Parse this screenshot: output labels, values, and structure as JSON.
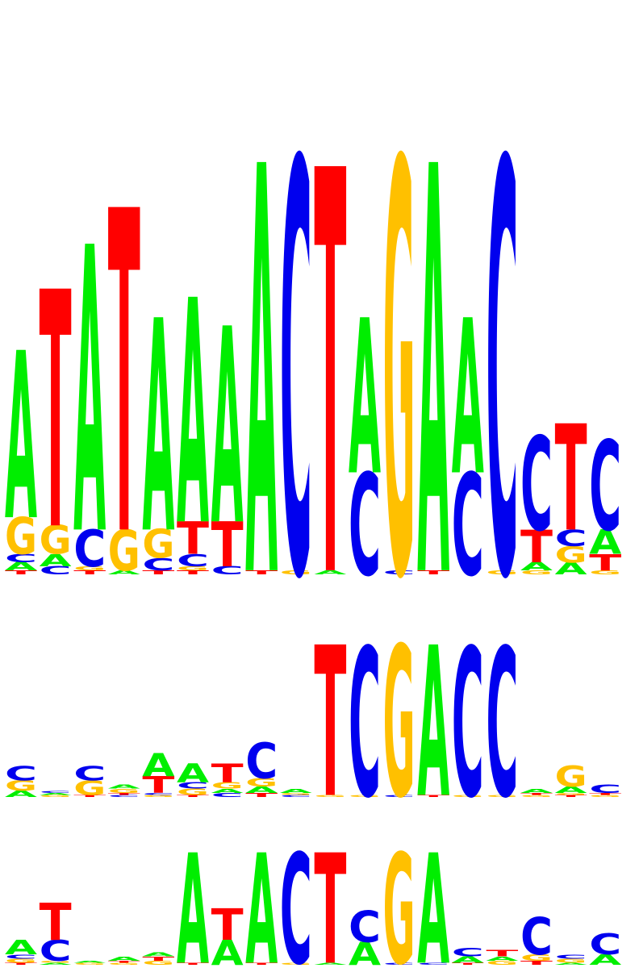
{
  "colors": {
    "A": "#00ee00",
    "C": "#0000ee",
    "G": "#ffc000",
    "T": "#ff0000"
  },
  "logos": [
    {
      "name": "logo-1",
      "columns": [
        [
          [
            "T",
            0.01
          ],
          [
            "A",
            0.02
          ],
          [
            "C",
            0.02
          ],
          [
            "G",
            0.09
          ],
          [
            "A",
            0.41
          ]
        ],
        [
          [
            "C",
            0.02
          ],
          [
            "A",
            0.03
          ],
          [
            "G",
            0.07
          ],
          [
            "T",
            0.58
          ]
        ],
        [
          [
            "T",
            0.01
          ],
          [
            "G",
            0.01
          ],
          [
            "C",
            0.09
          ],
          [
            "A",
            0.7
          ]
        ],
        [
          [
            "A",
            0.01
          ],
          [
            "G",
            0.1
          ],
          [
            "T",
            0.79
          ]
        ],
        [
          [
            "T",
            0.01
          ],
          [
            "C",
            0.03
          ],
          [
            "G",
            0.07
          ],
          [
            "A",
            0.52
          ]
        ],
        [
          [
            "T",
            0.01
          ],
          [
            "G",
            0.01
          ],
          [
            "C",
            0.03
          ],
          [
            "T",
            0.08
          ],
          [
            "A",
            0.55
          ]
        ],
        [
          [
            "C",
            0.02
          ],
          [
            "T",
            0.11
          ],
          [
            "A",
            0.48
          ]
        ],
        [
          [
            "T",
            0.01
          ],
          [
            "A",
            1.0
          ]
        ],
        [
          [
            "G",
            0.01
          ],
          [
            "C",
            1.01
          ]
        ],
        [
          [
            "A",
            0.01
          ],
          [
            "T",
            0.99
          ]
        ],
        [
          [
            "C",
            0.25
          ],
          [
            "A",
            0.38
          ]
        ],
        [
          [
            "C",
            0.01
          ],
          [
            "G",
            1.01
          ]
        ],
        [
          [
            "T",
            0.01
          ],
          [
            "A",
            1.0
          ]
        ],
        [
          [
            "C",
            0.25
          ],
          [
            "A",
            0.38
          ]
        ],
        [
          [
            "G",
            0.01
          ],
          [
            "C",
            1.01
          ]
        ],
        [
          [
            "G",
            0.01
          ],
          [
            "A",
            0.02
          ],
          [
            "T",
            0.08
          ],
          [
            "C",
            0.23
          ]
        ],
        [
          [
            "A",
            0.03
          ],
          [
            "G",
            0.04
          ],
          [
            "C",
            0.04
          ],
          [
            "T",
            0.26
          ]
        ],
        [
          [
            "G",
            0.01
          ],
          [
            "T",
            0.04
          ],
          [
            "A",
            0.06
          ],
          [
            "C",
            0.22
          ]
        ]
      ]
    },
    {
      "name": "logo-2",
      "columns": [
        [
          [
            "A",
            0.03
          ],
          [
            "G",
            0.05
          ],
          [
            "C",
            0.07
          ]
        ],
        [
          [
            "G",
            0.01
          ],
          [
            "A",
            0.01
          ],
          [
            "C",
            0.01
          ]
        ],
        [
          [
            "T",
            0.01
          ],
          [
            "G",
            0.07
          ],
          [
            "C",
            0.07
          ]
        ],
        [
          [
            "C",
            0.01
          ],
          [
            "T",
            0.01
          ],
          [
            "G",
            0.02
          ],
          [
            "A",
            0.02
          ]
        ],
        [
          [
            "G",
            0.01
          ],
          [
            "C",
            0.01
          ],
          [
            "T",
            0.08
          ],
          [
            "A",
            0.11
          ]
        ],
        [
          [
            "T",
            0.01
          ],
          [
            "G",
            0.03
          ],
          [
            "C",
            0.03
          ],
          [
            "A",
            0.09
          ]
        ],
        [
          [
            "C",
            0.02
          ],
          [
            "A",
            0.02
          ],
          [
            "G",
            0.03
          ],
          [
            "T",
            0.09
          ]
        ],
        [
          [
            "T",
            0.02
          ],
          [
            "A",
            0.03
          ],
          [
            "G",
            0.04
          ],
          [
            "C",
            0.17
          ]
        ],
        [
          [
            "C",
            0.01
          ],
          [
            "G",
            0.01
          ],
          [
            "A",
            0.02
          ]
        ],
        [
          [
            "G",
            0.01
          ],
          [
            "T",
            0.72
          ]
        ],
        [
          [
            "G",
            0.01
          ],
          [
            "C",
            0.71
          ]
        ],
        [
          [
            "C",
            0.01
          ],
          [
            "G",
            0.72
          ]
        ],
        [
          [
            "T",
            0.01
          ],
          [
            "A",
            0.72
          ]
        ],
        [
          [
            "G",
            0.01
          ],
          [
            "C",
            0.71
          ]
        ],
        [
          [
            "G",
            0.01
          ],
          [
            "C",
            0.71
          ]
        ],
        [
          [
            "G",
            0.01
          ],
          [
            "T",
            0.01
          ],
          [
            "A",
            0.02
          ]
        ],
        [
          [
            "T",
            0.01
          ],
          [
            "G",
            0.01
          ],
          [
            "A",
            0.03
          ],
          [
            "G",
            0.1
          ]
        ],
        [
          [
            "G",
            0.01
          ],
          [
            "T",
            0.01
          ],
          [
            "C",
            0.04
          ]
        ]
      ]
    },
    {
      "name": "logo-3",
      "columns": [
        [
          [
            "T",
            0.01
          ],
          [
            "G",
            0.02
          ],
          [
            "C",
            0.02
          ],
          [
            "A",
            0.07
          ]
        ],
        [
          [
            "A",
            0.01
          ],
          [
            "G",
            0.01
          ],
          [
            "C",
            0.1
          ],
          [
            "T",
            0.18
          ]
        ],
        [
          [
            "G",
            0.01
          ],
          [
            "A",
            0.01
          ]
        ],
        [
          [
            "G",
            0.01
          ],
          [
            "T",
            0.01
          ],
          [
            "A",
            0.02
          ]
        ],
        [
          [
            "G",
            0.02
          ],
          [
            "T",
            0.02
          ],
          [
            "A",
            0.02
          ]
        ],
        [
          [
            "T",
            0.01
          ],
          [
            "A",
            0.53
          ]
        ],
        [
          [
            "A",
            0.12
          ],
          [
            "T",
            0.15
          ]
        ],
        [
          [
            "T",
            0.01
          ],
          [
            "A",
            0.53
          ]
        ],
        [
          [
            "G",
            0.01
          ],
          [
            "C",
            0.53
          ]
        ],
        [
          [
            "A",
            0.01
          ],
          [
            "T",
            0.53
          ]
        ],
        [
          [
            "A",
            0.11
          ],
          [
            "C",
            0.15
          ]
        ],
        [
          [
            "C",
            0.01
          ],
          [
            "G",
            0.53
          ]
        ],
        [
          [
            "C",
            0.01
          ],
          [
            "A",
            0.53
          ]
        ],
        [
          [
            "T",
            0.01
          ],
          [
            "A",
            0.03
          ],
          [
            "C",
            0.04
          ]
        ],
        [
          [
            "G",
            0.02
          ],
          [
            "A",
            0.02
          ],
          [
            "T",
            0.03
          ]
        ],
        [
          [
            "T",
            0.02
          ],
          [
            "G",
            0.03
          ],
          [
            "C",
            0.18
          ]
        ],
        [
          [
            "A",
            0.01
          ],
          [
            "G",
            0.02
          ],
          [
            "C",
            0.02
          ]
        ],
        [
          [
            "A",
            0.05
          ],
          [
            "C",
            0.1
          ]
        ]
      ]
    }
  ]
}
